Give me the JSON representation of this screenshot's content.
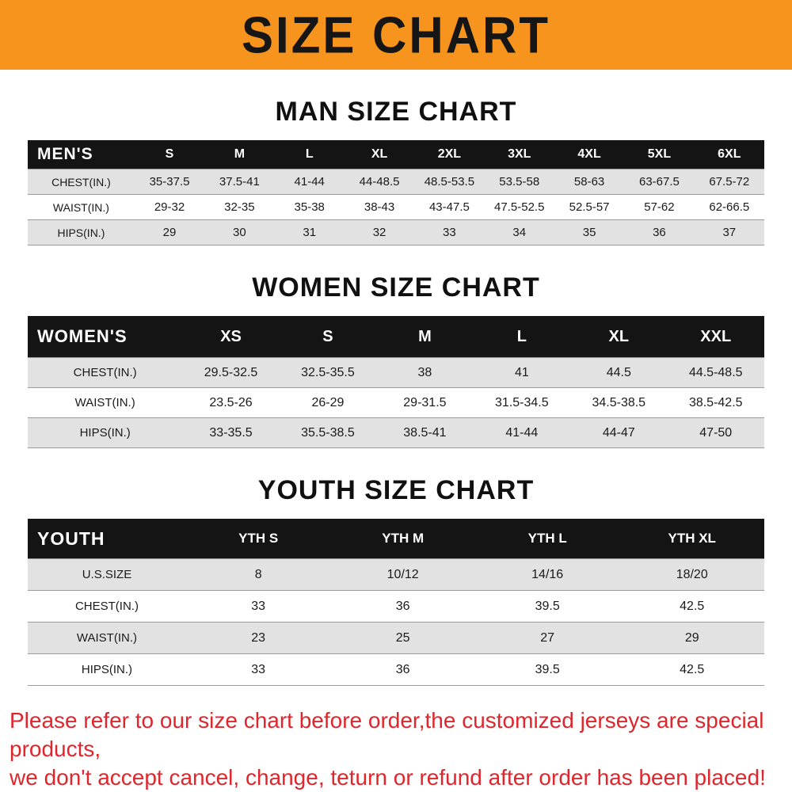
{
  "banner": {
    "title": "SIZE CHART"
  },
  "sections": [
    {
      "heading": "MAN SIZE CHART",
      "table": {
        "header_label": "MEN'S",
        "columns": [
          "S",
          "M",
          "L",
          "XL",
          "2XL",
          "3XL",
          "4XL",
          "5XL",
          "6XL"
        ],
        "rows": [
          {
            "label": "CHEST(IN.)",
            "values": [
              "35-37.5",
              "37.5-41",
              "41-44",
              "44-48.5",
              "48.5-53.5",
              "53.5-58",
              "58-63",
              "63-67.5",
              "67.5-72"
            ]
          },
          {
            "label": "WAIST(IN.)",
            "values": [
              "29-32",
              "32-35",
              "35-38",
              "38-43",
              "43-47.5",
              "47.5-52.5",
              "52.5-57",
              "57-62",
              "62-66.5"
            ]
          },
          {
            "label": "HIPS(IN.)",
            "values": [
              "29",
              "30",
              "31",
              "32",
              "33",
              "34",
              "35",
              "36",
              "37"
            ]
          }
        ]
      }
    },
    {
      "heading": "WOMEN SIZE CHART",
      "table": {
        "header_label": "WOMEN'S",
        "columns": [
          "XS",
          "S",
          "M",
          "L",
          "XL",
          "XXL"
        ],
        "rows": [
          {
            "label": "CHEST(IN.)",
            "values": [
              "29.5-32.5",
              "32.5-35.5",
              "38",
              "41",
              "44.5",
              "44.5-48.5"
            ]
          },
          {
            "label": "WAIST(IN.)",
            "values": [
              "23.5-26",
              "26-29",
              "29-31.5",
              "31.5-34.5",
              "34.5-38.5",
              "38.5-42.5"
            ]
          },
          {
            "label": "HIPS(IN.)",
            "values": [
              "33-35.5",
              "35.5-38.5",
              "38.5-41",
              "41-44",
              "44-47",
              "47-50"
            ]
          }
        ]
      }
    },
    {
      "heading": "YOUTH SIZE CHART",
      "table": {
        "header_label": "YOUTH",
        "columns": [
          "YTH S",
          "YTH M",
          "YTH L",
          "YTH XL"
        ],
        "rows": [
          {
            "label": "U.S.SIZE",
            "values": [
              "8",
              "10/12",
              "14/16",
              "18/20"
            ]
          },
          {
            "label": "CHEST(IN.)",
            "values": [
              "33",
              "36",
              "39.5",
              "42.5"
            ]
          },
          {
            "label": "WAIST(IN.)",
            "values": [
              "23",
              "25",
              "27",
              "29"
            ]
          },
          {
            "label": "HIPS(IN.)",
            "values": [
              "33",
              "36",
              "39.5",
              "42.5"
            ]
          }
        ]
      }
    }
  ],
  "footer": {
    "line1": "Please refer to our size chart before order,the customized jerseys are special products,",
    "line2": "we don't accept cancel, change, teturn or refund after order has been placed!"
  },
  "colors": {
    "banner_orange": "#f7941d",
    "header_black": "#141414",
    "stripe_gray": "#e2e2e2",
    "footer_red": "#e0262c"
  }
}
